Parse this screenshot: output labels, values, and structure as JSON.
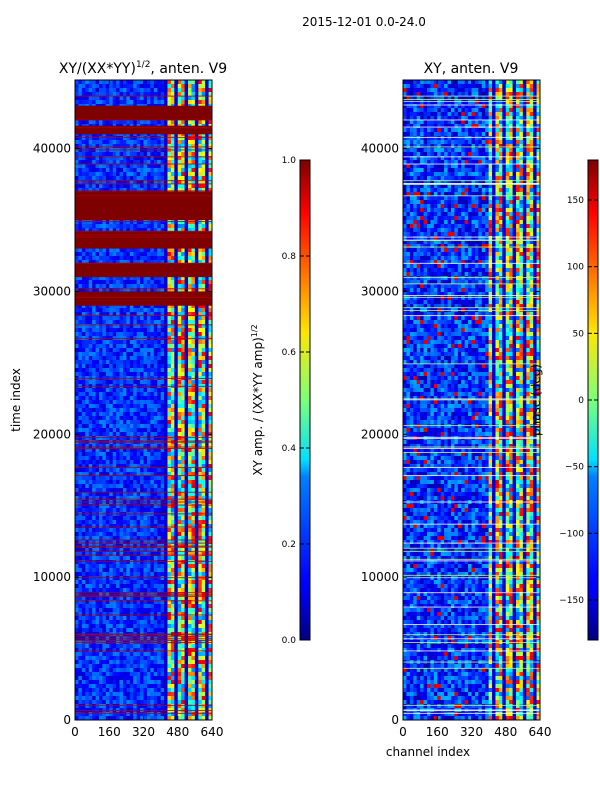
{
  "suptitle": "2015-12-01 0.0-24.0",
  "chart_data": [
    {
      "type": "heatmap",
      "title": "XY/(XX*YY)",
      "title_exponent": "1/2",
      "title_suffix": ", anten. V9",
      "xlabel": "",
      "ylabel": "time index",
      "x_ticks": [
        0,
        160,
        320,
        480,
        640
      ],
      "y_ticks": [
        0,
        10000,
        20000,
        30000,
        40000
      ],
      "xlim": [
        0,
        640
      ],
      "ylim": [
        0,
        44800
      ],
      "colorbar": {
        "label": "XY amp. / (XX*YY amp)",
        "label_exponent": "1/2",
        "ticks": [
          "0.0",
          "0.2",
          "0.4",
          "0.6",
          "0.8",
          "1.0"
        ],
        "tick_values": [
          0,
          0.2,
          0.4,
          0.6,
          0.8,
          1.0
        ],
        "range": [
          0,
          1
        ]
      },
      "colormap": "jet",
      "saturated_bands_time_index": [
        [
          42000,
          43000
        ],
        [
          41000,
          41600
        ],
        [
          35000,
          37000
        ],
        [
          33000,
          34200
        ],
        [
          31000,
          32000
        ],
        [
          29000,
          30000
        ]
      ],
      "bright_channel_range": [
        410,
        640
      ]
    },
    {
      "type": "heatmap",
      "title": "XY, anten. V9",
      "xlabel": "channel index",
      "ylabel": "",
      "x_ticks": [
        0,
        160,
        320,
        480,
        640
      ],
      "y_ticks": [
        0,
        10000,
        20000,
        30000,
        40000
      ],
      "xlim": [
        0,
        640
      ],
      "ylim": [
        0,
        44800
      ],
      "colorbar": {
        "label": "phase (deg)",
        "ticks": [
          "−150",
          "−100",
          "−50",
          "0",
          "50",
          "100",
          "150"
        ],
        "tick_values": [
          -150,
          -100,
          -50,
          0,
          50,
          100,
          150
        ],
        "range": [
          -180,
          180
        ]
      },
      "colormap": "jet",
      "bright_channel_range": [
        400,
        640
      ]
    }
  ]
}
